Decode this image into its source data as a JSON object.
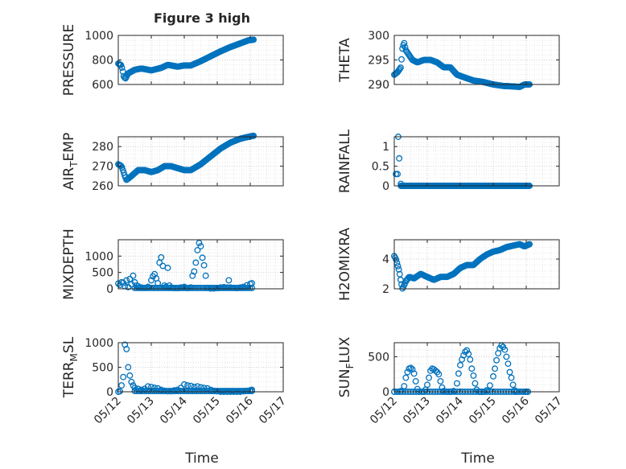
{
  "figure_title": "Figure 3 high",
  "xlabel_left": "Time",
  "xlabel_right": "Time",
  "marker_color": "#0072BD",
  "chart_data": [
    {
      "type": "scatter",
      "ylabel": "PRESSURE",
      "xlim": [
        "05/12",
        "05/16"
      ],
      "ylim": [
        600,
        1000
      ],
      "yticks": [
        600,
        800,
        1000
      ],
      "xticks": [
        "05/12",
        "05/13",
        "05/14",
        "05/15",
        "05/16",
        "05/17"
      ],
      "xtick_labels_visible": false,
      "grid": true,
      "keypoints": [
        [
          0,
          770
        ],
        [
          0.08,
          760
        ],
        [
          0.12,
          730
        ],
        [
          0.17,
          660
        ],
        [
          0.22,
          650
        ],
        [
          0.3,
          690
        ],
        [
          0.5,
          720
        ],
        [
          0.7,
          730
        ],
        [
          1.0,
          715
        ],
        [
          1.3,
          735
        ],
        [
          1.5,
          760
        ],
        [
          1.8,
          745
        ],
        [
          2.0,
          755
        ],
        [
          2.2,
          755
        ],
        [
          2.5,
          790
        ],
        [
          2.8,
          830
        ],
        [
          3.1,
          870
        ],
        [
          3.4,
          905
        ],
        [
          3.7,
          935
        ],
        [
          3.95,
          960
        ],
        [
          4.1,
          965
        ]
      ],
      "n_points": 150
    },
    {
      "type": "scatter",
      "ylabel": "THETA",
      "xlim": [
        "05/12",
        "05/16"
      ],
      "ylim": [
        290,
        300
      ],
      "yticks": [
        290,
        295,
        300
      ],
      "xticks": [
        "05/12",
        "05/13",
        "05/14",
        "05/15",
        "05/16",
        "05/17"
      ],
      "xtick_labels_visible": false,
      "grid": true,
      "keypoints": [
        [
          0,
          292
        ],
        [
          0.1,
          292.5
        ],
        [
          0.2,
          293.5
        ],
        [
          0.25,
          297.5
        ],
        [
          0.3,
          298.5
        ],
        [
          0.35,
          297
        ],
        [
          0.45,
          296
        ],
        [
          0.55,
          295
        ],
        [
          0.7,
          294.5
        ],
        [
          0.9,
          295
        ],
        [
          1.1,
          295
        ],
        [
          1.3,
          294.5
        ],
        [
          1.5,
          293.5
        ],
        [
          1.7,
          293.5
        ],
        [
          1.9,
          292
        ],
        [
          2.1,
          291.5
        ],
        [
          2.4,
          290.8
        ],
        [
          2.7,
          290.5
        ],
        [
          3.0,
          290
        ],
        [
          3.3,
          289.7
        ],
        [
          3.6,
          289.6
        ],
        [
          3.8,
          289.5
        ],
        [
          3.95,
          290
        ],
        [
          4.1,
          290
        ]
      ],
      "n_points": 150
    },
    {
      "type": "scatter",
      "ylabel": "AIR_TEMP",
      "xlim": [
        "05/12",
        "05/16"
      ],
      "ylim": [
        260,
        285
      ],
      "yticks": [
        260,
        270,
        280
      ],
      "xticks": [
        "05/12",
        "05/13",
        "05/14",
        "05/15",
        "05/16",
        "05/17"
      ],
      "xtick_labels_visible": false,
      "grid": true,
      "keypoints": [
        [
          0,
          271
        ],
        [
          0.1,
          270
        ],
        [
          0.2,
          265
        ],
        [
          0.25,
          263
        ],
        [
          0.4,
          265
        ],
        [
          0.6,
          268
        ],
        [
          0.8,
          268
        ],
        [
          1.0,
          267
        ],
        [
          1.2,
          268
        ],
        [
          1.4,
          270
        ],
        [
          1.6,
          270
        ],
        [
          1.8,
          269
        ],
        [
          2.0,
          268
        ],
        [
          2.2,
          268
        ],
        [
          2.5,
          271
        ],
        [
          2.8,
          275
        ],
        [
          3.1,
          279
        ],
        [
          3.4,
          282
        ],
        [
          3.7,
          284
        ],
        [
          3.95,
          285
        ],
        [
          4.1,
          285.5
        ]
      ],
      "n_points": 150
    },
    {
      "type": "scatter",
      "ylabel": "RAINFALL",
      "xlim": [
        "05/12",
        "05/16"
      ],
      "ylim": [
        0,
        1.25
      ],
      "yticks": [
        0,
        0.5,
        1
      ],
      "ytick_labels": [
        "0",
        "0.5",
        "1"
      ],
      "xticks": [
        "05/12",
        "05/13",
        "05/14",
        "05/15",
        "05/16",
        "05/17"
      ],
      "xtick_labels_visible": false,
      "grid": true,
      "points": [
        [
          0.05,
          0.3
        ],
        [
          0.1,
          0.3
        ],
        [
          0.12,
          1.25
        ],
        [
          0.15,
          0.7
        ],
        [
          0.2,
          0.05
        ]
      ],
      "baseline": {
        "x_from": 0.2,
        "x_to": 4.1,
        "y": 0,
        "n": 160
      }
    },
    {
      "type": "scatter",
      "ylabel": "MIXDEPTH",
      "xlim": [
        "05/12",
        "05/16"
      ],
      "ylim": [
        0,
        1500
      ],
      "yticks": [
        0,
        500,
        1000
      ],
      "xticks": [
        "05/12",
        "05/13",
        "05/14",
        "05/15",
        "05/16",
        "05/17"
      ],
      "xtick_labels_visible": false,
      "grid": true,
      "points": [
        [
          0.0,
          160
        ],
        [
          0.05,
          120
        ],
        [
          0.1,
          200
        ],
        [
          0.15,
          180
        ],
        [
          0.2,
          80
        ],
        [
          0.25,
          260
        ],
        [
          0.3,
          50
        ],
        [
          0.35,
          300
        ],
        [
          0.4,
          140
        ],
        [
          0.45,
          400
        ],
        [
          0.5,
          200
        ],
        [
          0.55,
          100
        ],
        [
          0.6,
          80
        ],
        [
          0.7,
          40
        ],
        [
          0.8,
          30
        ],
        [
          0.9,
          60
        ],
        [
          1.0,
          260
        ],
        [
          1.05,
          380
        ],
        [
          1.1,
          450
        ],
        [
          1.15,
          320
        ],
        [
          1.2,
          170
        ],
        [
          1.25,
          800
        ],
        [
          1.3,
          960
        ],
        [
          1.35,
          700
        ],
        [
          1.4,
          100
        ],
        [
          1.45,
          60
        ],
        [
          1.5,
          640
        ],
        [
          1.55,
          100
        ],
        [
          1.6,
          40
        ],
        [
          1.7,
          20
        ],
        [
          1.8,
          20
        ],
        [
          1.9,
          40
        ],
        [
          2.0,
          60
        ],
        [
          2.1,
          20
        ],
        [
          2.2,
          40
        ],
        [
          2.25,
          400
        ],
        [
          2.3,
          530
        ],
        [
          2.35,
          800
        ],
        [
          2.4,
          1180
        ],
        [
          2.45,
          1400
        ],
        [
          2.5,
          1300
        ],
        [
          2.55,
          950
        ],
        [
          2.6,
          720
        ],
        [
          2.65,
          400
        ],
        [
          2.7,
          30
        ],
        [
          2.8,
          10
        ],
        [
          2.9,
          10
        ],
        [
          3.0,
          20
        ],
        [
          3.1,
          40
        ],
        [
          3.2,
          50
        ],
        [
          3.3,
          40
        ],
        [
          3.35,
          260
        ],
        [
          3.4,
          40
        ],
        [
          3.5,
          30
        ],
        [
          3.6,
          20
        ],
        [
          3.7,
          40
        ],
        [
          3.8,
          60
        ],
        [
          3.9,
          110
        ],
        [
          4.0,
          150
        ],
        [
          4.05,
          170
        ]
      ],
      "extra_baseline": {
        "x_from": 0.5,
        "x_to": 4.05,
        "y": 25,
        "n": 60
      }
    },
    {
      "type": "scatter",
      "ylabel": "H2OMIXRA",
      "xlim": [
        "05/12",
        "05/16"
      ],
      "ylim": [
        2,
        5.3
      ],
      "yticks": [
        2,
        4
      ],
      "xticks": [
        "05/12",
        "05/13",
        "05/14",
        "05/15",
        "05/16",
        "05/17"
      ],
      "xtick_labels_visible": false,
      "grid": true,
      "keypoints": [
        [
          0,
          4.2
        ],
        [
          0.05,
          4
        ],
        [
          0.1,
          3.6
        ],
        [
          0.15,
          3.2
        ],
        [
          0.2,
          2.5
        ],
        [
          0.25,
          2.0
        ],
        [
          0.35,
          2.5
        ],
        [
          0.45,
          2.8
        ],
        [
          0.6,
          2.7
        ],
        [
          0.8,
          3.0
        ],
        [
          1.0,
          2.8
        ],
        [
          1.2,
          2.6
        ],
        [
          1.4,
          2.8
        ],
        [
          1.6,
          2.8
        ],
        [
          1.8,
          3.0
        ],
        [
          2.0,
          3.4
        ],
        [
          2.2,
          3.6
        ],
        [
          2.4,
          3.6
        ],
        [
          2.6,
          4.0
        ],
        [
          2.8,
          4.3
        ],
        [
          3.0,
          4.5
        ],
        [
          3.2,
          4.6
        ],
        [
          3.4,
          4.8
        ],
        [
          3.6,
          4.9
        ],
        [
          3.8,
          5.0
        ],
        [
          3.95,
          4.85
        ],
        [
          4.1,
          5.0
        ]
      ],
      "n_points": 150
    },
    {
      "type": "scatter",
      "ylabel": "TERR_MSL",
      "xlim": [
        "05/12",
        "05/17"
      ],
      "ylim": [
        0,
        1000
      ],
      "yticks": [
        0,
        500,
        1000
      ],
      "xticks": [
        "05/12",
        "05/13",
        "05/14",
        "05/15",
        "05/16",
        "05/17"
      ],
      "xtick_labels_visible": true,
      "grid": true,
      "points": [
        [
          0.0,
          0
        ],
        [
          0.05,
          10
        ],
        [
          0.1,
          130
        ],
        [
          0.15,
          300
        ],
        [
          0.2,
          960
        ],
        [
          0.25,
          870
        ],
        [
          0.3,
          500
        ],
        [
          0.35,
          330
        ],
        [
          0.4,
          200
        ],
        [
          0.45,
          130
        ],
        [
          0.5,
          80
        ],
        [
          0.6,
          60
        ],
        [
          0.7,
          40
        ],
        [
          0.8,
          60
        ],
        [
          0.9,
          110
        ],
        [
          1.0,
          100
        ],
        [
          1.1,
          80
        ],
        [
          1.2,
          70
        ],
        [
          1.3,
          40
        ],
        [
          1.4,
          20
        ],
        [
          1.5,
          10
        ],
        [
          1.6,
          10
        ],
        [
          1.7,
          30
        ],
        [
          1.8,
          40
        ],
        [
          1.9,
          80
        ],
        [
          2.0,
          150
        ],
        [
          2.1,
          130
        ],
        [
          2.2,
          120
        ],
        [
          2.3,
          100
        ],
        [
          2.4,
          110
        ],
        [
          2.5,
          90
        ],
        [
          2.6,
          80
        ],
        [
          2.7,
          70
        ],
        [
          2.8,
          40
        ],
        [
          2.9,
          20
        ],
        [
          3.0,
          10
        ],
        [
          3.1,
          0
        ],
        [
          3.2,
          0
        ],
        [
          3.3,
          0
        ],
        [
          3.4,
          0
        ],
        [
          3.5,
          0
        ],
        [
          3.6,
          0
        ],
        [
          3.7,
          0
        ],
        [
          3.8,
          10
        ],
        [
          3.9,
          20
        ],
        [
          4.0,
          30
        ],
        [
          4.05,
          40
        ]
      ],
      "extra_baseline": {
        "x_from": 0.5,
        "x_to": 4.05,
        "y": 15,
        "n": 60
      }
    },
    {
      "type": "scatter",
      "ylabel": "SUN_FLUX",
      "xlim": [
        "05/12",
        "05/17"
      ],
      "ylim": [
        0,
        700
      ],
      "yticks": [
        0,
        500
      ],
      "xticks": [
        "05/12",
        "05/13",
        "05/14",
        "05/15",
        "05/16",
        "05/17"
      ],
      "xtick_labels_visible": true,
      "grid": true,
      "points": [
        [
          0.0,
          0
        ],
        [
          0.1,
          0
        ],
        [
          0.2,
          10
        ],
        [
          0.3,
          80
        ],
        [
          0.35,
          200
        ],
        [
          0.4,
          280
        ],
        [
          0.45,
          330
        ],
        [
          0.5,
          340
        ],
        [
          0.55,
          320
        ],
        [
          0.6,
          260
        ],
        [
          0.65,
          150
        ],
        [
          0.7,
          40
        ],
        [
          0.75,
          0
        ],
        [
          0.85,
          0
        ],
        [
          0.95,
          30
        ],
        [
          1.0,
          100
        ],
        [
          1.05,
          200
        ],
        [
          1.1,
          300
        ],
        [
          1.15,
          330
        ],
        [
          1.2,
          320
        ],
        [
          1.25,
          300
        ],
        [
          1.3,
          280
        ],
        [
          1.35,
          250
        ],
        [
          1.4,
          150
        ],
        [
          1.45,
          60
        ],
        [
          1.5,
          10
        ],
        [
          1.6,
          0
        ],
        [
          1.7,
          0
        ],
        [
          1.8,
          10
        ],
        [
          1.9,
          120
        ],
        [
          1.95,
          260
        ],
        [
          2.0,
          380
        ],
        [
          2.05,
          460
        ],
        [
          2.1,
          520
        ],
        [
          2.15,
          570
        ],
        [
          2.2,
          590
        ],
        [
          2.25,
          540
        ],
        [
          2.3,
          460
        ],
        [
          2.35,
          330
        ],
        [
          2.4,
          230
        ],
        [
          2.45,
          120
        ],
        [
          2.5,
          30
        ],
        [
          2.6,
          0
        ],
        [
          2.7,
          0
        ],
        [
          2.8,
          20
        ],
        [
          2.9,
          90
        ],
        [
          3.0,
          220
        ],
        [
          3.05,
          330
        ],
        [
          3.1,
          450
        ],
        [
          3.15,
          550
        ],
        [
          3.2,
          620
        ],
        [
          3.25,
          660
        ],
        [
          3.3,
          640
        ],
        [
          3.35,
          600
        ],
        [
          3.4,
          500
        ],
        [
          3.45,
          400
        ],
        [
          3.5,
          280
        ],
        [
          3.55,
          200
        ],
        [
          3.6,
          100
        ],
        [
          3.65,
          20
        ],
        [
          3.7,
          0
        ],
        [
          3.8,
          0
        ],
        [
          3.9,
          0
        ],
        [
          4.0,
          0
        ],
        [
          4.05,
          0
        ]
      ],
      "extra_baseline": {
        "x_from": 0.0,
        "x_to": 4.05,
        "y": 0,
        "n": 50
      }
    }
  ]
}
